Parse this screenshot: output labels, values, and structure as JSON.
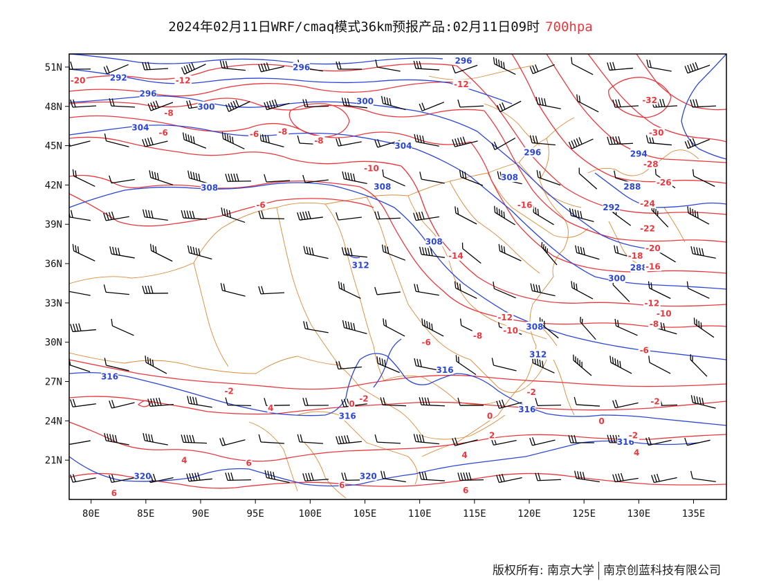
{
  "title": {
    "main": "2024年02月11日WRF/cmaq模式36km预报产品:02月11日09时",
    "level": "700hpa"
  },
  "map": {
    "lon_range": [
      78,
      138
    ],
    "lat_range": [
      18,
      52
    ],
    "lon_ticks": [
      "80E",
      "85E",
      "90E",
      "95E",
      "100E",
      "105E",
      "110E",
      "115E",
      "120E",
      "125E",
      "130E",
      "135E"
    ],
    "lon_values": [
      80,
      85,
      90,
      95,
      100,
      105,
      110,
      115,
      120,
      125,
      130,
      135
    ],
    "lat_ticks": [
      "51N",
      "48N",
      "45N",
      "42N",
      "39N",
      "36N",
      "33N",
      "30N",
      "27N",
      "24N",
      "21N"
    ],
    "lat_values": [
      51,
      48,
      45,
      42,
      39,
      36,
      33,
      30,
      27,
      24,
      21
    ],
    "colors": {
      "temperature": "#e8383d",
      "height": "#2b45d6",
      "border": "#d98a3a",
      "wind": "#000000"
    },
    "height_labels": [
      {
        "text": "292",
        "lon": 82.5,
        "lat": 50.2
      },
      {
        "text": "296",
        "lon": 99.2,
        "lat": 51.0
      },
      {
        "text": "296",
        "lon": 114.0,
        "lat": 51.5
      },
      {
        "text": "296",
        "lon": 85.2,
        "lat": 49.0
      },
      {
        "text": "300",
        "lon": 90.5,
        "lat": 48.0
      },
      {
        "text": "300",
        "lon": 105.0,
        "lat": 48.4
      },
      {
        "text": "304",
        "lon": 84.5,
        "lat": 46.4
      },
      {
        "text": "304",
        "lon": 108.5,
        "lat": 45.0
      },
      {
        "text": "296",
        "lon": 120.3,
        "lat": 44.5
      },
      {
        "text": "294",
        "lon": 130.0,
        "lat": 44.4
      },
      {
        "text": "308",
        "lon": 90.8,
        "lat": 41.8
      },
      {
        "text": "308",
        "lon": 106.6,
        "lat": 41.9
      },
      {
        "text": "308",
        "lon": 118.2,
        "lat": 42.6
      },
      {
        "text": "288",
        "lon": 129.4,
        "lat": 41.9
      },
      {
        "text": "292",
        "lon": 127.5,
        "lat": 40.3
      },
      {
        "text": "308",
        "lon": 111.3,
        "lat": 37.7
      },
      {
        "text": "288",
        "lon": 130.0,
        "lat": 35.7
      },
      {
        "text": "312",
        "lon": 104.6,
        "lat": 35.9
      },
      {
        "text": "300",
        "lon": 128.0,
        "lat": 34.9
      },
      {
        "text": "308",
        "lon": 120.5,
        "lat": 31.2
      },
      {
        "text": "312",
        "lon": 120.8,
        "lat": 29.1
      },
      {
        "text": "316",
        "lon": 112.3,
        "lat": 27.9
      },
      {
        "text": "316",
        "lon": 81.7,
        "lat": 27.4
      },
      {
        "text": "316",
        "lon": 103.4,
        "lat": 24.4
      },
      {
        "text": "316",
        "lon": 119.8,
        "lat": 24.9
      },
      {
        "text": "316",
        "lon": 128.8,
        "lat": 22.4
      },
      {
        "text": "320",
        "lon": 84.7,
        "lat": 19.8
      },
      {
        "text": "320",
        "lon": 105.3,
        "lat": 19.8
      }
    ],
    "temperature_labels": [
      {
        "text": "-20",
        "lon": 78.8,
        "lat": 50.0
      },
      {
        "text": "-12",
        "lon": 88.4,
        "lat": 50.0
      },
      {
        "text": "-12",
        "lon": 113.8,
        "lat": 49.7
      },
      {
        "text": "-32",
        "lon": 131.0,
        "lat": 48.5
      },
      {
        "text": "-8",
        "lon": 87.1,
        "lat": 47.5
      },
      {
        "text": "-6",
        "lon": 86.6,
        "lat": 46.0
      },
      {
        "text": "-6",
        "lon": 94.9,
        "lat": 45.9
      },
      {
        "text": "-8",
        "lon": 97.5,
        "lat": 46.1
      },
      {
        "text": "-8",
        "lon": 100.8,
        "lat": 45.4
      },
      {
        "text": "-30",
        "lon": 131.6,
        "lat": 46.0
      },
      {
        "text": "-10",
        "lon": 105.6,
        "lat": 43.3
      },
      {
        "text": "-28",
        "lon": 131.1,
        "lat": 43.6
      },
      {
        "text": "-26",
        "lon": 132.3,
        "lat": 42.2
      },
      {
        "text": "-16",
        "lon": 119.6,
        "lat": 40.5
      },
      {
        "text": "-24",
        "lon": 130.8,
        "lat": 40.6
      },
      {
        "text": "-6",
        "lon": 95.5,
        "lat": 40.5
      },
      {
        "text": "-22",
        "lon": 130.8,
        "lat": 38.7
      },
      {
        "text": "-20",
        "lon": 131.3,
        "lat": 37.2
      },
      {
        "text": "-18",
        "lon": 129.7,
        "lat": 36.6
      },
      {
        "text": "-16",
        "lon": 131.3,
        "lat": 35.8
      },
      {
        "text": "-14",
        "lon": 113.3,
        "lat": 36.6
      },
      {
        "text": "-12",
        "lon": 131.2,
        "lat": 33.0
      },
      {
        "text": "-10",
        "lon": 132.3,
        "lat": 32.2
      },
      {
        "text": "-8",
        "lon": 131.4,
        "lat": 31.4
      },
      {
        "text": "-12",
        "lon": 117.8,
        "lat": 31.9
      },
      {
        "text": "-10",
        "lon": 118.3,
        "lat": 30.9
      },
      {
        "text": "-8",
        "lon": 115.3,
        "lat": 30.5
      },
      {
        "text": "-6",
        "lon": 110.6,
        "lat": 30.0
      },
      {
        "text": "-6",
        "lon": 130.5,
        "lat": 29.4
      },
      {
        "text": "-2",
        "lon": 92.6,
        "lat": 26.3
      },
      {
        "text": "-2",
        "lon": 120.2,
        "lat": 26.2
      },
      {
        "text": "-2",
        "lon": 131.5,
        "lat": 25.5
      },
      {
        "text": "-2",
        "lon": 104.9,
        "lat": 25.7
      },
      {
        "text": "0",
        "lon": 103.8,
        "lat": 25.3
      },
      {
        "text": "4",
        "lon": 96.4,
        "lat": 25.0
      },
      {
        "text": "0",
        "lon": 116.4,
        "lat": 24.4
      },
      {
        "text": "0",
        "lon": 126.6,
        "lat": 24.0
      },
      {
        "text": "2",
        "lon": 116.6,
        "lat": 22.9
      },
      {
        "text": "-2",
        "lon": 129.5,
        "lat": 22.9
      },
      {
        "text": "4",
        "lon": 88.5,
        "lat": 21.0
      },
      {
        "text": "4",
        "lon": 114.1,
        "lat": 21.4
      },
      {
        "text": "4",
        "lon": 129.8,
        "lat": 21.6
      },
      {
        "text": "6",
        "lon": 94.4,
        "lat": 20.8
      },
      {
        "text": "6",
        "lon": 102.9,
        "lat": 19.1
      },
      {
        "text": "6",
        "lon": 114.2,
        "lat": 18.7
      },
      {
        "text": "6",
        "lon": 82.1,
        "lat": 18.5
      }
    ]
  },
  "footer": {
    "copyright": "版权所有: 南京大学",
    "company": "南京创蓝科技有限公司"
  }
}
